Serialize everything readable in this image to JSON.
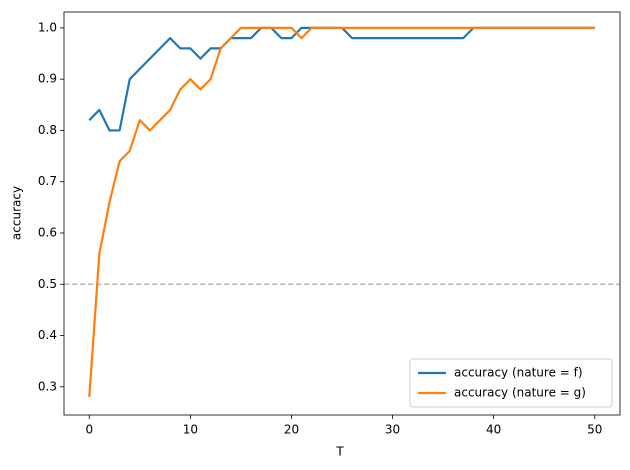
{
  "chart_data": {
    "type": "line",
    "x_label": "T",
    "y_label": "accuracy",
    "x": [
      0,
      1,
      2,
      3,
      4,
      5,
      6,
      7,
      8,
      9,
      10,
      11,
      12,
      13,
      14,
      15,
      16,
      17,
      18,
      19,
      20,
      21,
      22,
      23,
      24,
      25,
      26,
      27,
      28,
      29,
      30,
      31,
      32,
      33,
      34,
      35,
      36,
      37,
      38,
      39,
      40,
      41,
      42,
      43,
      44,
      45,
      46,
      47,
      48,
      49,
      50
    ],
    "series": [
      {
        "name": "accuracy (nature = f)",
        "color": "#1f77b4",
        "values": [
          0.82,
          0.84,
          0.8,
          0.8,
          0.9,
          0.92,
          0.94,
          0.96,
          0.98,
          0.96,
          0.96,
          0.94,
          0.96,
          0.96,
          0.98,
          0.98,
          0.98,
          1.0,
          1.0,
          0.98,
          0.98,
          1.0,
          1.0,
          1.0,
          1.0,
          1.0,
          0.98,
          0.98,
          0.98,
          0.98,
          0.98,
          0.98,
          0.98,
          0.98,
          0.98,
          0.98,
          0.98,
          0.98,
          1.0,
          1.0,
          1.0,
          1.0,
          1.0,
          1.0,
          1.0,
          1.0,
          1.0,
          1.0,
          1.0,
          1.0,
          1.0
        ]
      },
      {
        "name": "accuracy (nature = g)",
        "color": "#ff7f0e",
        "values": [
          0.28,
          0.56,
          0.66,
          0.74,
          0.76,
          0.82,
          0.8,
          0.82,
          0.84,
          0.88,
          0.9,
          0.88,
          0.9,
          0.96,
          0.98,
          1.0,
          1.0,
          1.0,
          1.0,
          1.0,
          1.0,
          0.98,
          1.0,
          1.0,
          1.0,
          1.0,
          1.0,
          1.0,
          1.0,
          1.0,
          1.0,
          1.0,
          1.0,
          1.0,
          1.0,
          1.0,
          1.0,
          1.0,
          1.0,
          1.0,
          1.0,
          1.0,
          1.0,
          1.0,
          1.0,
          1.0,
          1.0,
          1.0,
          1.0,
          1.0,
          1.0
        ]
      }
    ],
    "hlines": [
      {
        "value": 0.5,
        "color": "#bbbbbb"
      }
    ],
    "xlim": [
      -2.5,
      52.5
    ],
    "ylim": [
      0.245,
      1.031
    ],
    "xticks": [
      0,
      10,
      20,
      30,
      40,
      50
    ],
    "yticks": [
      0.3,
      0.4,
      0.5,
      0.6,
      0.7,
      0.8,
      0.9,
      {
        "value": 1,
        "label": "1.0"
      }
    ],
    "legend": "lower right"
  }
}
